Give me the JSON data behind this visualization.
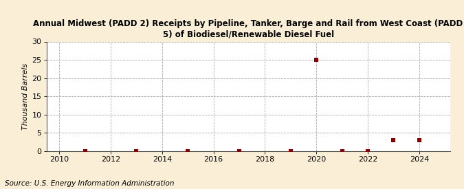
{
  "title": "Annual Midwest (PADD 2) Receipts by Pipeline, Tanker, Barge and Rail from West Coast (PADD\n5) of Biodiesel/Renewable Diesel Fuel",
  "ylabel": "Thousand Barrels",
  "source": "Source: U.S. Energy Information Administration",
  "background_color": "#faefd6",
  "plot_background_color": "#ffffff",
  "xlim": [
    2009.5,
    2025.2
  ],
  "ylim": [
    0,
    30
  ],
  "yticks": [
    0,
    5,
    10,
    15,
    20,
    25,
    30
  ],
  "xticks": [
    2010,
    2012,
    2014,
    2016,
    2018,
    2020,
    2022,
    2024
  ],
  "data_x": [
    2011,
    2013,
    2015,
    2017,
    2019,
    2020,
    2021,
    2022,
    2023,
    2024
  ],
  "data_y": [
    0.05,
    0.05,
    0.05,
    0.05,
    0.05,
    25,
    0.05,
    0.05,
    3,
    3
  ],
  "marker_color": "#8b0000",
  "marker_size": 4,
  "grid_color": "#aaaaaa",
  "grid_linestyle": "--",
  "title_fontsize": 8.5,
  "axis_fontsize": 8,
  "source_fontsize": 7.5
}
